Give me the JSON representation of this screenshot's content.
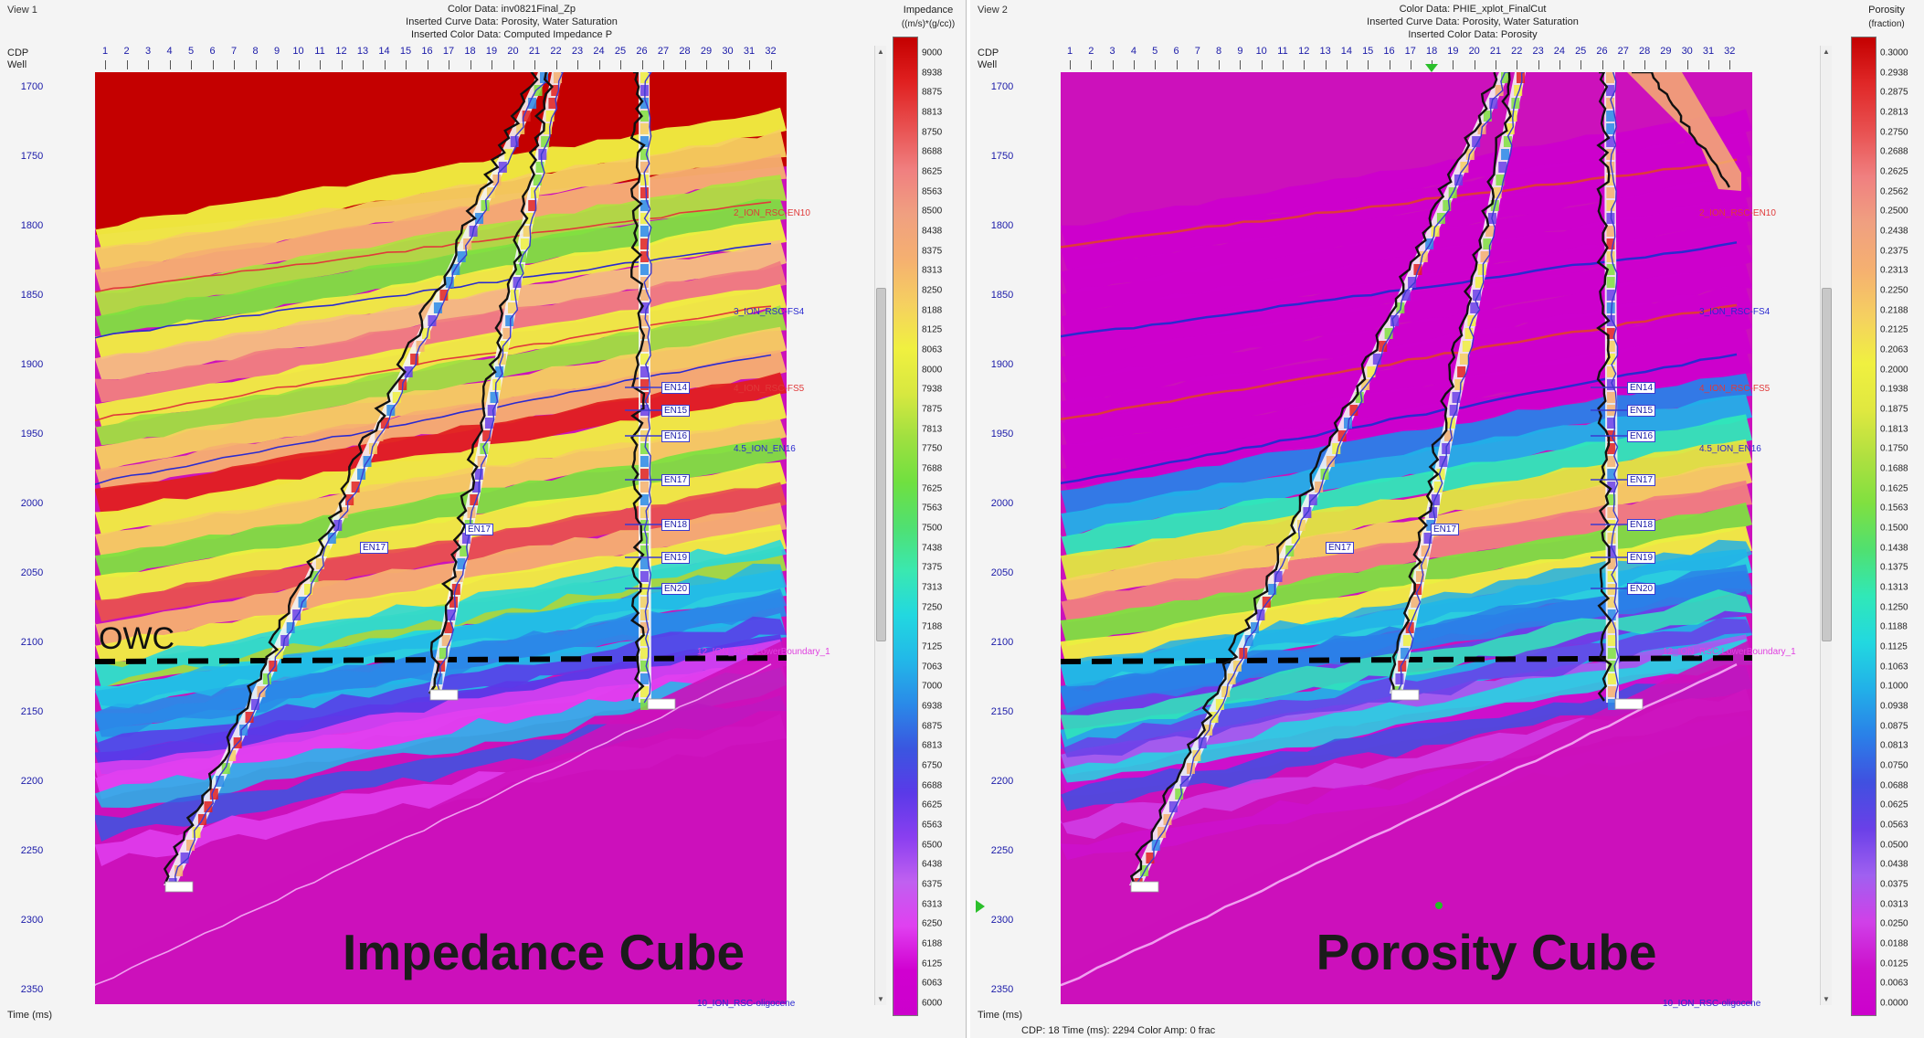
{
  "views": [
    {
      "label": "View 1",
      "header": [
        "Color Data: inv0821Final_Zp",
        "Inserted Curve Data: Porosity, Water Saturation",
        "Inserted Color Data: Computed Impedance P"
      ],
      "cdp_label": "CDP",
      "well_label": "Well",
      "time_label": "Time (ms)",
      "cube_title": "Impedance Cube",
      "owc_label": "OWC",
      "horizons": [
        {
          "name": "2_ION_RSC-EN10",
          "color": "#e03a3a"
        },
        {
          "name": "3_ION_RSC-FS4",
          "color": "#2a2ad0"
        },
        {
          "name": "4_ION_RSC-FS5",
          "color": "#e03a3a"
        },
        {
          "name": "4.5_ION_EN16",
          "color": "#2a2ad0"
        },
        {
          "name": "12_ION_RSC-LowerBoundary_1",
          "color": "#e040e0"
        },
        {
          "name": "10_ION_RSC-oligocene",
          "color": "#2a2ad0"
        }
      ],
      "well_markers": [
        "EN14",
        "EN15",
        "EN16",
        "EN17",
        "EN18",
        "EN19",
        "EN20",
        "EN17",
        "EN17"
      ],
      "colorbar": {
        "title_line1": "Impedance",
        "title_line2": "((m/s)*(g/cc))",
        "labels": [
          "9000",
          "8938",
          "8875",
          "8813",
          "8750",
          "8688",
          "8625",
          "8563",
          "8500",
          "8438",
          "8375",
          "8313",
          "8250",
          "8188",
          "8125",
          "8063",
          "8000",
          "7938",
          "7875",
          "7813",
          "7750",
          "7688",
          "7625",
          "7563",
          "7500",
          "7438",
          "7375",
          "7313",
          "7250",
          "7188",
          "7125",
          "7063",
          "7000",
          "6938",
          "6875",
          "6813",
          "6750",
          "6688",
          "6625",
          "6563",
          "6500",
          "6438",
          "6375",
          "6313",
          "6250",
          "6188",
          "6125",
          "6063",
          "6000"
        ]
      },
      "status": ""
    },
    {
      "label": "View 2",
      "header": [
        "Color Data: PHIE_xplot_FinalCut",
        "Inserted Curve Data: Porosity, Water Saturation",
        "Inserted Color Data: Porosity"
      ],
      "cdp_label": "CDP",
      "well_label": "Well",
      "time_label": "Time (ms)",
      "cube_title": "Porosity Cube",
      "owc_label": "",
      "horizons": [
        {
          "name": "2_ION_RSC-EN10",
          "color": "#e03a3a"
        },
        {
          "name": "3_ION_RSC-FS4",
          "color": "#2a2ad0"
        },
        {
          "name": "4_ION_RSC-FS5",
          "color": "#e03a3a"
        },
        {
          "name": "4.5_ION_EN16",
          "color": "#2a2ad0"
        },
        {
          "name": "12_ION_RSC-LowerBoundary_1",
          "color": "#e040e0"
        },
        {
          "name": "10_ION_RSC-oligocene",
          "color": "#2a2ad0"
        }
      ],
      "well_markers": [
        "EN14",
        "EN15",
        "EN16",
        "EN17",
        "EN18",
        "EN19",
        "EN20",
        "EN17",
        "EN17"
      ],
      "colorbar": {
        "title_line1": "Porosity",
        "title_line2": "(fraction)",
        "labels": [
          "0.3000",
          "0.2938",
          "0.2875",
          "0.2813",
          "0.2750",
          "0.2688",
          "0.2625",
          "0.2562",
          "0.2500",
          "0.2438",
          "0.2375",
          "0.2313",
          "0.2250",
          "0.2188",
          "0.2125",
          "0.2063",
          "0.2000",
          "0.1938",
          "0.1875",
          "0.1813",
          "0.1750",
          "0.1688",
          "0.1625",
          "0.1563",
          "0.1500",
          "0.1438",
          "0.1375",
          "0.1313",
          "0.1250",
          "0.1188",
          "0.1125",
          "0.1063",
          "0.1000",
          "0.0938",
          "0.0875",
          "0.0813",
          "0.0750",
          "0.0688",
          "0.0625",
          "0.0563",
          "0.0500",
          "0.0438",
          "0.0375",
          "0.0313",
          "0.0250",
          "0.0188",
          "0.0125",
          "0.0063",
          "0.0000"
        ]
      },
      "status": "CDP: 18  Time (ms): 2294  Color Amp: 0 frac"
    }
  ],
  "cdp_ticks": [
    "1",
    "2",
    "3",
    "4",
    "5",
    "6",
    "7",
    "8",
    "9",
    "10",
    "11",
    "12",
    "13",
    "14",
    "15",
    "16",
    "17",
    "18",
    "19",
    "20",
    "21",
    "22",
    "23",
    "24",
    "25",
    "26",
    "27",
    "28",
    "29",
    "30",
    "31",
    "32"
  ],
  "time_ticks": [
    "1700",
    "1750",
    "1800",
    "1850",
    "1900",
    "1950",
    "2000",
    "2050",
    "2100",
    "2150",
    "2200",
    "2250",
    "2300",
    "2350"
  ],
  "colors": {
    "impedance_high": "#c40000",
    "magenta": "#cc11bb",
    "well_fill": "#f0f0f0",
    "trajectory": "#111111"
  }
}
